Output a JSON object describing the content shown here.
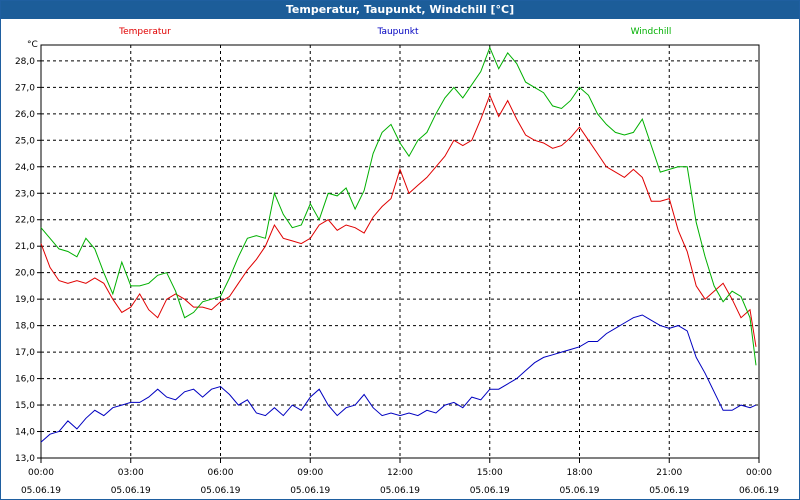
{
  "window": {
    "title": "Temperatur, Taupunkt, Windchill [°C]"
  },
  "chart_data": {
    "type": "line",
    "title": "Temperatur, Taupunkt, Windchill [°C]",
    "ylabel": "°C",
    "ylim": [
      13.0,
      28.6
    ],
    "xlim": [
      0,
      24
    ],
    "grid": true,
    "yticks": [
      "13,0",
      "14,0",
      "15,0",
      "16,0",
      "17,0",
      "18,0",
      "19,0",
      "20,0",
      "21,0",
      "22,0",
      "23,0",
      "24,0",
      "25,0",
      "26,0",
      "27,0",
      "28,0"
    ],
    "yticks_values": [
      13,
      14,
      15,
      16,
      17,
      18,
      19,
      20,
      21,
      22,
      23,
      24,
      25,
      26,
      27,
      28
    ],
    "xticks_values": [
      0,
      3,
      6,
      9,
      12,
      15,
      18,
      21,
      24
    ],
    "xticks_time": [
      "00:00",
      "03:00",
      "06:00",
      "09:00",
      "12:00",
      "15:00",
      "18:00",
      "21:00",
      "00:00"
    ],
    "xticks_date": [
      "05.06.19",
      "05.06.19",
      "05.06.19",
      "05.06.19",
      "05.06.19",
      "05.06.19",
      "05.06.19",
      "05.06.19",
      "06.06.19"
    ],
    "series": [
      {
        "name": "Temperatur",
        "color": "#e00000",
        "x": [
          0,
          0.3,
          0.6,
          0.9,
          1.2,
          1.5,
          1.8,
          2.1,
          2.4,
          2.7,
          3.0,
          3.3,
          3.6,
          3.9,
          4.2,
          4.5,
          4.8,
          5.1,
          5.4,
          5.7,
          6.0,
          6.3,
          6.6,
          6.9,
          7.2,
          7.5,
          7.8,
          8.1,
          8.4,
          8.7,
          9.0,
          9.3,
          9.6,
          9.9,
          10.2,
          10.5,
          10.8,
          11.1,
          11.4,
          11.7,
          12.0,
          12.3,
          12.6,
          12.9,
          13.2,
          13.5,
          13.8,
          14.1,
          14.4,
          14.7,
          15.0,
          15.3,
          15.6,
          15.9,
          16.2,
          16.5,
          16.8,
          17.1,
          17.4,
          17.7,
          18.0,
          18.3,
          18.6,
          18.9,
          19.2,
          19.5,
          19.8,
          20.1,
          20.4,
          20.7,
          21.0,
          21.3,
          21.6,
          21.9,
          22.2,
          22.5,
          22.8,
          23.1,
          23.4,
          23.7,
          23.9
        ],
        "values": [
          21.1,
          20.2,
          19.7,
          19.6,
          19.7,
          19.6,
          19.8,
          19.6,
          19.0,
          18.5,
          18.7,
          19.2,
          18.6,
          18.3,
          19.0,
          19.2,
          19.0,
          18.7,
          18.7,
          18.6,
          18.9,
          19.1,
          19.6,
          20.1,
          20.5,
          21.0,
          21.8,
          21.3,
          21.2,
          21.1,
          21.3,
          21.8,
          22.0,
          21.6,
          21.8,
          21.7,
          21.5,
          22.1,
          22.5,
          22.8,
          23.9,
          23.0,
          23.3,
          23.6,
          24.0,
          24.4,
          25.0,
          24.8,
          25.0,
          25.8,
          26.7,
          25.9,
          26.5,
          25.8,
          25.2,
          25.0,
          24.9,
          24.7,
          24.8,
          25.1,
          25.5,
          25.0,
          24.5,
          24.0,
          23.8,
          23.6,
          23.9,
          23.6,
          22.7,
          22.7,
          22.8,
          21.6,
          20.8,
          19.5,
          19.0,
          19.3,
          19.6,
          19.0,
          18.3,
          18.6,
          17.2
        ]
      },
      {
        "name": "Taupunkt",
        "color": "#0000c0",
        "x": [
          0,
          0.3,
          0.6,
          0.9,
          1.2,
          1.5,
          1.8,
          2.1,
          2.4,
          2.7,
          3.0,
          3.3,
          3.6,
          3.9,
          4.2,
          4.5,
          4.8,
          5.1,
          5.4,
          5.7,
          6.0,
          6.3,
          6.6,
          6.9,
          7.2,
          7.5,
          7.8,
          8.1,
          8.4,
          8.7,
          9.0,
          9.3,
          9.6,
          9.9,
          10.2,
          10.5,
          10.8,
          11.1,
          11.4,
          11.7,
          12.0,
          12.3,
          12.6,
          12.9,
          13.2,
          13.5,
          13.8,
          14.1,
          14.4,
          14.7,
          15.0,
          15.3,
          15.6,
          15.9,
          16.2,
          16.5,
          16.8,
          17.1,
          17.4,
          17.7,
          18.0,
          18.3,
          18.6,
          18.9,
          19.2,
          19.5,
          19.8,
          20.1,
          20.4,
          20.7,
          21.0,
          21.3,
          21.6,
          21.9,
          22.2,
          22.5,
          22.8,
          23.1,
          23.4,
          23.7,
          23.9
        ],
        "values": [
          13.6,
          13.9,
          14.0,
          14.4,
          14.1,
          14.5,
          14.8,
          14.6,
          14.9,
          15.0,
          15.1,
          15.1,
          15.3,
          15.6,
          15.3,
          15.2,
          15.5,
          15.6,
          15.3,
          15.6,
          15.7,
          15.4,
          15.0,
          15.2,
          14.7,
          14.6,
          14.9,
          14.6,
          15.0,
          14.8,
          15.3,
          15.6,
          15.0,
          14.6,
          14.9,
          15.0,
          15.4,
          14.9,
          14.6,
          14.7,
          14.6,
          14.7,
          14.6,
          14.8,
          14.7,
          15.0,
          15.1,
          14.9,
          15.3,
          15.2,
          15.6,
          15.6,
          15.8,
          16.0,
          16.3,
          16.6,
          16.8,
          16.9,
          17.0,
          17.1,
          17.2,
          17.4,
          17.4,
          17.7,
          17.9,
          18.1,
          18.3,
          18.4,
          18.2,
          18.0,
          17.9,
          18.0,
          17.8,
          16.8,
          16.2,
          15.5,
          14.8,
          14.8,
          15.0,
          14.9,
          15.0
        ]
      },
      {
        "name": "Windchill",
        "color": "#00b000",
        "x": [
          0,
          0.3,
          0.6,
          0.9,
          1.2,
          1.5,
          1.8,
          2.1,
          2.4,
          2.7,
          3.0,
          3.3,
          3.6,
          3.9,
          4.2,
          4.5,
          4.8,
          5.1,
          5.4,
          5.7,
          6.0,
          6.3,
          6.6,
          6.9,
          7.2,
          7.5,
          7.8,
          8.1,
          8.4,
          8.7,
          9.0,
          9.3,
          9.6,
          9.9,
          10.2,
          10.5,
          10.8,
          11.1,
          11.4,
          11.7,
          12.0,
          12.3,
          12.6,
          12.9,
          13.2,
          13.5,
          13.8,
          14.1,
          14.4,
          14.7,
          15.0,
          15.3,
          15.6,
          15.9,
          16.2,
          16.5,
          16.8,
          17.1,
          17.4,
          17.7,
          18.0,
          18.3,
          18.6,
          18.9,
          19.2,
          19.5,
          19.8,
          20.1,
          20.4,
          20.7,
          21.0,
          21.3,
          21.6,
          21.9,
          22.2,
          22.5,
          22.8,
          23.1,
          23.4,
          23.7,
          23.9
        ],
        "values": [
          21.7,
          21.3,
          20.9,
          20.8,
          20.6,
          21.3,
          20.9,
          20.0,
          19.2,
          20.4,
          19.5,
          19.5,
          19.6,
          19.9,
          20.0,
          19.3,
          18.3,
          18.5,
          18.9,
          19.0,
          19.1,
          19.8,
          20.6,
          21.3,
          21.4,
          21.3,
          23.0,
          22.2,
          21.7,
          21.8,
          22.6,
          22.0,
          23.0,
          22.9,
          23.2,
          22.4,
          23.1,
          24.5,
          25.3,
          25.6,
          24.9,
          24.4,
          25.0,
          25.3,
          26.0,
          26.6,
          27.0,
          26.6,
          27.1,
          27.6,
          28.5,
          27.7,
          28.3,
          27.9,
          27.2,
          27.0,
          26.8,
          26.3,
          26.2,
          26.5,
          27.0,
          26.7,
          26.0,
          25.6,
          25.3,
          25.2,
          25.3,
          25.8,
          24.8,
          23.8,
          23.9,
          24.0,
          24.0,
          21.9,
          20.6,
          19.5,
          18.9,
          19.3,
          19.1,
          18.3,
          16.5
        ]
      }
    ]
  }
}
